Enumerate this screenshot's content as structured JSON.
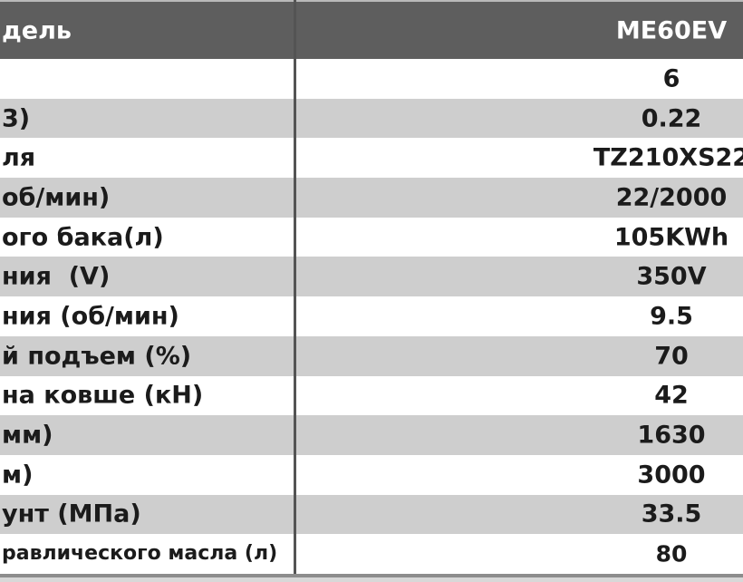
{
  "table": {
    "title_note": "specification table cropped at left and right edges",
    "header": {
      "label_fragment": "дель",
      "model_value": "ME60EV"
    },
    "rows": [
      {
        "label_fragment": "",
        "value": "6"
      },
      {
        "label_fragment": "3)",
        "value": "0.22"
      },
      {
        "label_fragment": "ля",
        "value": "TZ210XS22"
      },
      {
        "label_fragment": "об/мин)",
        "value": "22/2000"
      },
      {
        "label_fragment": "ого бака(л)",
        "value": "105KWh"
      },
      {
        "label_fragment": "ния  (V)",
        "value": "350V"
      },
      {
        "label_fragment": "ния (об/мин)",
        "value": "9.5"
      },
      {
        "label_fragment": "й подъем (%)",
        "value": "70"
      },
      {
        "label_fragment": "на ковше (кН)",
        "value": "42"
      },
      {
        "label_fragment": "мм)",
        "value": "1630"
      },
      {
        "label_fragment": "м)",
        "value": "3000"
      },
      {
        "label_fragment": "унт (МПа)",
        "value": "33.5"
      },
      {
        "label_fragment": "равлического масла (л)",
        "value": "80"
      }
    ],
    "colors": {
      "header_bg": "#5e5e5e",
      "header_text": "#ffffff",
      "row_alt_bg": "#cecece",
      "row_bg": "#ffffff",
      "body_text": "#1b1b1b",
      "divider": "#545454",
      "bottom_border": "#8d8d8d"
    }
  }
}
